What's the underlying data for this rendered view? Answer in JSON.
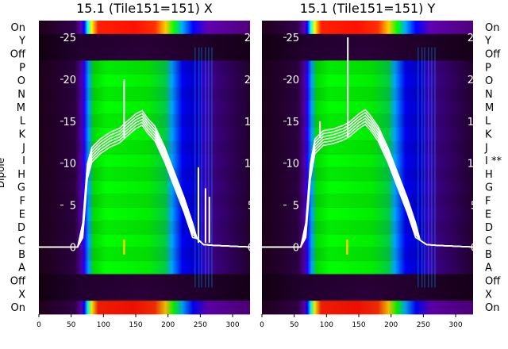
{
  "chart_data": [
    {
      "type": "heatmap",
      "title": "15.1 (Tile151=151) X",
      "ylabel": "Dipole",
      "row_labels_top_to_bottom": [
        "On",
        "Y",
        "Off",
        "P",
        "O",
        "N",
        "M",
        "L",
        "K",
        "J",
        "I",
        "H",
        "G",
        "F",
        "E",
        "D",
        "C",
        "B",
        "A",
        "Off",
        "X",
        "On"
      ],
      "x_ticks": [
        0,
        50,
        100,
        150,
        200,
        250,
        300
      ],
      "xlim": [
        0,
        327
      ],
      "y_ticks": [
        0,
        5,
        10,
        15,
        20,
        25
      ],
      "ylim": [
        -8,
        27
      ],
      "colormap": [
        "#1a0010",
        "#3a0050",
        "#6a00a8",
        "#0000ff",
        "#00a0ff",
        "#00ff00",
        "#ffff00",
        "#ff8000",
        "#ff0000"
      ],
      "overlay_color": "#ffffff",
      "overlay_profile": [
        [
          0,
          0
        ],
        [
          60,
          0
        ],
        [
          68,
          2
        ],
        [
          75,
          9
        ],
        [
          82,
          11
        ],
        [
          95,
          12
        ],
        [
          110,
          12.8
        ],
        [
          125,
          13.3
        ],
        [
          135,
          14
        ],
        [
          150,
          15
        ],
        [
          160,
          15.4
        ],
        [
          168,
          14.5
        ],
        [
          180,
          13.5
        ],
        [
          195,
          11
        ],
        [
          210,
          8
        ],
        [
          225,
          5
        ],
        [
          238,
          2
        ],
        [
          245,
          1
        ],
        [
          255,
          0.3
        ],
        [
          270,
          0.2
        ],
        [
          327,
          0
        ]
      ],
      "overlay_spikes": [
        [
          132,
          20
        ],
        [
          247,
          9.5
        ],
        [
          258,
          7
        ],
        [
          264,
          6
        ]
      ]
    },
    {
      "type": "heatmap",
      "title": "15.1 (Tile151=151) Y",
      "ylabel": "",
      "row_labels_top_to_bottom": [
        "On",
        "Y",
        "Off",
        "P",
        "O",
        "N",
        "M",
        "L",
        "K",
        "J",
        "I **",
        "H",
        "G",
        "F",
        "E",
        "D",
        "C",
        "B",
        "A",
        "Off",
        "X",
        "On"
      ],
      "x_ticks": [
        0,
        50,
        100,
        150,
        200,
        250,
        300
      ],
      "xlim": [
        0,
        327
      ],
      "y_ticks": [
        0,
        5,
        10,
        15,
        20,
        25
      ],
      "ylim": [
        -8,
        27
      ],
      "colormap": [
        "#1a0010",
        "#3a0050",
        "#6a00a8",
        "#0000ff",
        "#00a0ff",
        "#00ff00",
        "#ffff00",
        "#ff8000",
        "#ff0000"
      ],
      "overlay_color": "#ffffff",
      "overlay_profile": [
        [
          0,
          0
        ],
        [
          60,
          0
        ],
        [
          68,
          2
        ],
        [
          75,
          9
        ],
        [
          82,
          12
        ],
        [
          95,
          13
        ],
        [
          110,
          13.2
        ],
        [
          125,
          13.6
        ],
        [
          135,
          14
        ],
        [
          150,
          15
        ],
        [
          160,
          15.5
        ],
        [
          168,
          14.8
        ],
        [
          180,
          13.5
        ],
        [
          195,
          11
        ],
        [
          210,
          8
        ],
        [
          225,
          5
        ],
        [
          238,
          2
        ],
        [
          245,
          0.8
        ],
        [
          255,
          0.3
        ],
        [
          270,
          0.2
        ],
        [
          327,
          0
        ]
      ],
      "overlay_spikes": [
        [
          133,
          25
        ],
        [
          90,
          15
        ]
      ]
    }
  ]
}
